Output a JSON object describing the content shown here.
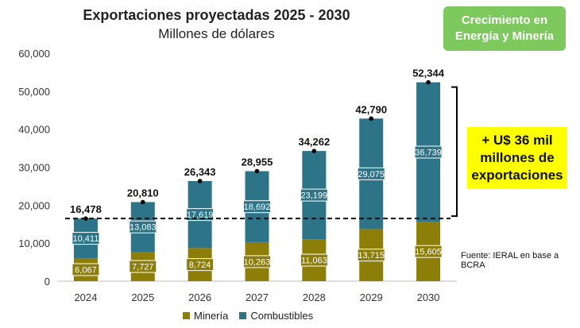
{
  "chart_data": {
    "type": "bar",
    "stacked": true,
    "title": "Exportaciones proyectadas 2025 - 2030",
    "subtitle": "Millones de dólares",
    "categories": [
      "2024",
      "2025",
      "2026",
      "2027",
      "2028",
      "2029",
      "2030"
    ],
    "series": [
      {
        "name": "Minería",
        "color": "#8c7e08",
        "values": [
          6067,
          7727,
          8724,
          10263,
          11063,
          13715,
          15605
        ]
      },
      {
        "name": "Combustibles",
        "color": "#2e7488",
        "values": [
          10411,
          13083,
          17619,
          18692,
          23199,
          29075,
          36739
        ]
      }
    ],
    "totals": [
      16478,
      20810,
      26343,
      28955,
      34262,
      42790,
      52344
    ],
    "ylim": [
      0,
      60000
    ],
    "yticks": [
      "0",
      "10,000",
      "20,000",
      "30,000",
      "40,000",
      "50,000",
      "60,000"
    ],
    "total_labels": [
      "16,478",
      "20,810",
      "26,343",
      "28,955",
      "34,262",
      "42,790",
      "52,344"
    ],
    "segment_labels": {
      "mineria": [
        "6,067",
        "7,727",
        "8,724",
        "10,263",
        "11,063",
        "13,715",
        "15,605"
      ],
      "combustibles": [
        "10,411",
        "13,083",
        "17,619",
        "18,692",
        "23,199",
        "29,075",
        "36,739"
      ]
    },
    "reference_line": {
      "value": 16478,
      "style": "dashed",
      "color": "#111111"
    },
    "grid": false,
    "legend_placement": "bottom",
    "annotations": {
      "badge": "Crecimiento en Energía y Minería",
      "callout": "+ U$ 36 mil millones de exportaciones",
      "source": "Fuente: IERAL en base a BCRA"
    }
  },
  "colors": {
    "badge_bg": "#7dc95e",
    "callout_bg": "#ffff00",
    "axis": "#bfbfbf"
  }
}
